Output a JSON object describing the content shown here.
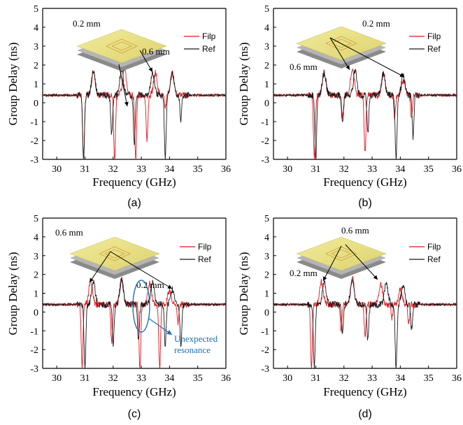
{
  "colors": {
    "filp": "#e8141c",
    "ref": "#1a1a1a",
    "annotation": "#1f6fb5"
  },
  "chart_data": [
    {
      "type": "line",
      "panel_label": "(a)",
      "xlabel": "Frequency (GHz)",
      "ylabel": "Group Delay (ns)",
      "xlim": [
        29.5,
        36
      ],
      "ylim": [
        -3,
        5
      ],
      "xticks": [
        "30",
        "31",
        "32",
        "33",
        "34",
        "35",
        "36"
      ],
      "yticks": [
        "-3",
        "-2",
        "-1",
        "0",
        "1",
        "2",
        "3",
        "4",
        "5"
      ],
      "legend": [
        "Filp",
        "Ref"
      ],
      "annotations": [
        "0.2 mm",
        "0.6 mm"
      ],
      "series": [
        {
          "name": "Filp",
          "dips": [
            [
              30.95,
              -3.0
            ],
            [
              32.05,
              -3.0
            ],
            [
              32.8,
              -3.0
            ],
            [
              33.2,
              -2.0
            ],
            [
              33.85,
              -0.2
            ]
          ],
          "peaks": [
            [
              31.3,
              1.65
            ],
            [
              32.4,
              1.75
            ],
            [
              33.5,
              1.6
            ],
            [
              34.1,
              1.55
            ]
          ]
        },
        {
          "name": "Ref",
          "dips": [
            [
              30.95,
              -3.0
            ],
            [
              31.95,
              -1.7
            ],
            [
              32.75,
              -2.3
            ],
            [
              33.85,
              -3.0
            ],
            [
              34.4,
              -1.0
            ]
          ],
          "peaks": [
            [
              31.3,
              1.65
            ],
            [
              32.3,
              1.75
            ],
            [
              33.4,
              1.6
            ],
            [
              34.1,
              1.55
            ]
          ]
        }
      ]
    },
    {
      "type": "line",
      "panel_label": "(b)",
      "xlabel": "Frequency (GHz)",
      "ylabel": "Group Delay (ns)",
      "xlim": [
        29.5,
        36
      ],
      "ylim": [
        -3,
        5
      ],
      "xticks": [
        "30",
        "31",
        "32",
        "33",
        "34",
        "35",
        "36"
      ],
      "yticks": [
        "-3",
        "-2",
        "-1",
        "0",
        "1",
        "2",
        "3",
        "4",
        "5"
      ],
      "legend": [
        "Filp",
        "Ref"
      ],
      "annotations": [
        "0.2 mm",
        "0.6 mm"
      ],
      "series": [
        {
          "name": "Filp",
          "dips": [
            [
              30.95,
              -3.0
            ],
            [
              31.95,
              -0.8
            ],
            [
              32.75,
              -2.6
            ],
            [
              33.8,
              -0.8
            ],
            [
              34.4,
              -0.9
            ]
          ],
          "peaks": [
            [
              31.3,
              1.6
            ],
            [
              32.3,
              1.8
            ],
            [
              33.4,
              1.55
            ],
            [
              34.1,
              1.2
            ]
          ]
        },
        {
          "name": "Ref",
          "dips": [
            [
              31.0,
              -3.0
            ],
            [
              31.95,
              -1.0
            ],
            [
              32.85,
              -1.7
            ],
            [
              33.85,
              -3.0
            ],
            [
              34.45,
              -1.8
            ]
          ],
          "peaks": [
            [
              31.3,
              1.6
            ],
            [
              32.4,
              1.7
            ],
            [
              33.4,
              1.55
            ],
            [
              34.1,
              1.4
            ]
          ]
        }
      ]
    },
    {
      "type": "line",
      "panel_label": "(c)",
      "xlabel": "Frequency (GHz)",
      "ylabel": "Group Delay (ns)",
      "xlim": [
        29.5,
        36
      ],
      "ylim": [
        -3,
        5
      ],
      "xticks": [
        "30",
        "31",
        "32",
        "33",
        "34",
        "35",
        "36"
      ],
      "yticks": [
        "-3",
        "-2",
        "-1",
        "0",
        "1",
        "2",
        "3",
        "4",
        "5"
      ],
      "legend": [
        "Filp",
        "Ref"
      ],
      "annotations": [
        "0.6 mm",
        "0.2 mm",
        "Unexpected",
        "resonance"
      ],
      "series": [
        {
          "name": "Filp",
          "dips": [
            [
              30.9,
              -3.0
            ],
            [
              31.95,
              -1.6
            ],
            [
              32.95,
              -3.0
            ],
            [
              33.65,
              -3.0
            ],
            [
              34.3,
              -0.6
            ]
          ],
          "peaks": [
            [
              31.2,
              1.65
            ],
            [
              32.3,
              1.8
            ],
            [
              33.3,
              1.5
            ],
            [
              34.0,
              1.15
            ]
          ]
        },
        {
          "name": "Ref",
          "dips": [
            [
              31.0,
              -3.0
            ],
            [
              32.0,
              -1.8
            ],
            [
              32.9,
              -1.5
            ],
            [
              33.85,
              -1.8
            ],
            [
              34.4,
              -1.8
            ]
          ],
          "peaks": [
            [
              31.3,
              1.6
            ],
            [
              32.3,
              1.7
            ],
            [
              33.4,
              1.55
            ],
            [
              34.1,
              1.2
            ]
          ]
        }
      ]
    },
    {
      "type": "line",
      "panel_label": "(d)",
      "xlabel": "Frequency (GHz)",
      "ylabel": "Group Delay (ns)",
      "xlim": [
        29.5,
        36
      ],
      "ylim": [
        -3,
        5
      ],
      "xticks": [
        "30",
        "31",
        "32",
        "33",
        "34",
        "35",
        "36"
      ],
      "yticks": [
        "-3",
        "-2",
        "-1",
        "0",
        "1",
        "2",
        "3",
        "4",
        "5"
      ],
      "legend": [
        "Filp",
        "Ref"
      ],
      "annotations": [
        "0.6 mm",
        "0.2 mm"
      ],
      "series": [
        {
          "name": "Filp",
          "dips": [
            [
              30.85,
              -3.0
            ],
            [
              31.9,
              -0.9
            ],
            [
              32.75,
              -1.4
            ],
            [
              33.7,
              -0.3
            ],
            [
              34.3,
              -0.6
            ]
          ],
          "peaks": [
            [
              31.2,
              1.6
            ],
            [
              32.3,
              1.8
            ],
            [
              33.3,
              1.5
            ],
            [
              34.0,
              1.2
            ]
          ]
        },
        {
          "name": "Ref",
          "dips": [
            [
              30.95,
              -3.0
            ],
            [
              31.95,
              -1.1
            ],
            [
              32.85,
              -1.5
            ],
            [
              33.85,
              -3.0
            ],
            [
              34.4,
              -0.9
            ]
          ],
          "peaks": [
            [
              31.3,
              1.6
            ],
            [
              32.3,
              1.7
            ],
            [
              33.5,
              1.55
            ],
            [
              34.1,
              1.4
            ]
          ]
        }
      ]
    }
  ]
}
